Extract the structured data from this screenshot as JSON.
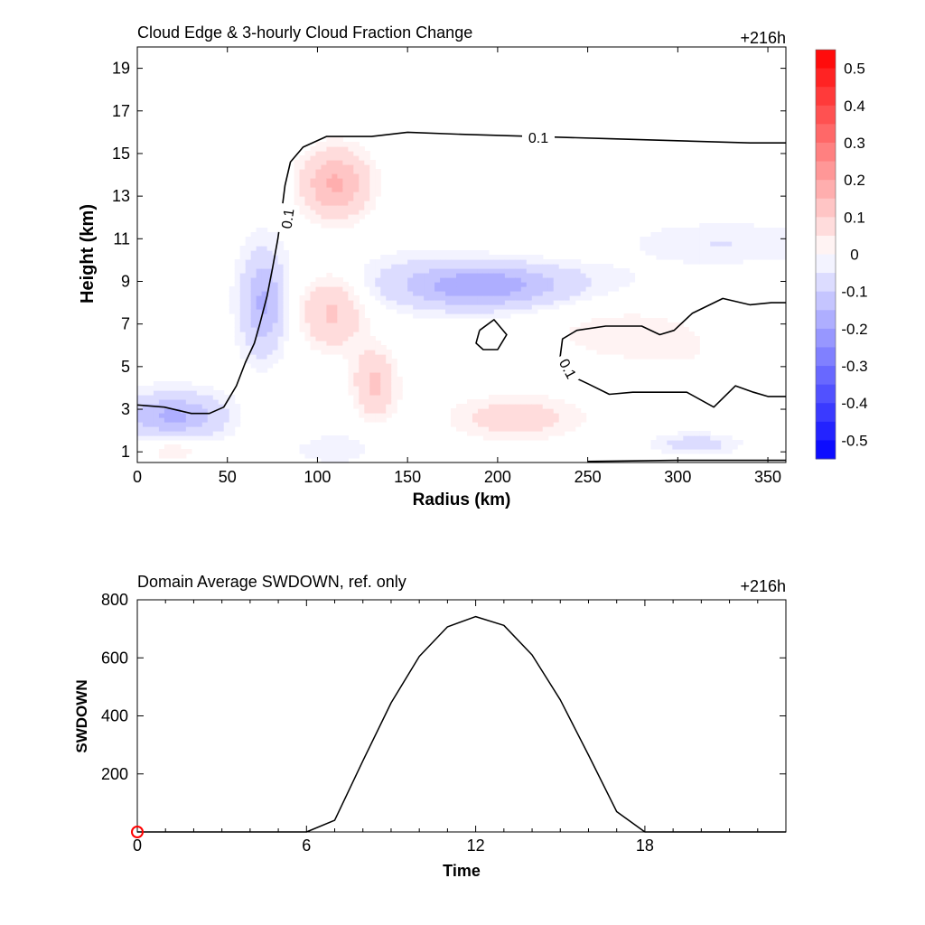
{
  "chart_data": [
    {
      "type": "heatmap",
      "title": "Cloud Edge & 3-hourly Cloud Fraction Change",
      "time_label": "+216h",
      "xlabel": "Radius (km)",
      "ylabel": "Height (km)",
      "xlim": [
        0,
        360
      ],
      "ylim": [
        0.5,
        20
      ],
      "x_ticks": [
        "0",
        "50",
        "100",
        "150",
        "200",
        "250",
        "300",
        "350"
      ],
      "y_ticks": [
        "1",
        "3",
        "5",
        "7",
        "9",
        "11",
        "13",
        "15",
        "17",
        "19"
      ],
      "colorbar": {
        "min": -0.55,
        "max": 0.55,
        "step": 0.05,
        "tick_labels": [
          "0.5",
          "0.4",
          "0.3",
          "0.2",
          "0.1",
          "0",
          "-0.1",
          "-0.2",
          "-0.3",
          "-0.4",
          "-0.5"
        ],
        "neg_color": "#0000ff",
        "pos_color": "#ff0000"
      },
      "contour_level_label": "0.1",
      "contour_level": 0.1,
      "anomalies": [
        {
          "x": 20,
          "y": 2.7,
          "sx": 20,
          "sy": 0.7,
          "v": -0.15
        },
        {
          "x": 70,
          "y": 8,
          "sx": 8,
          "sy": 1.6,
          "v": -0.15
        },
        {
          "x": 190,
          "y": 8.7,
          "sx": 32,
          "sy": 0.7,
          "v": -0.14
        },
        {
          "x": 200,
          "y": 9.3,
          "sx": 50,
          "sy": 0.8,
          "v": -0.06
        },
        {
          "x": 320,
          "y": 10.8,
          "sx": 40,
          "sy": 0.6,
          "v": -0.04
        },
        {
          "x": 310,
          "y": 1.4,
          "sx": 14,
          "sy": 0.3,
          "v": -0.07
        },
        {
          "x": 100,
          "y": 1.2,
          "sx": 20,
          "sy": 0.5,
          "v": -0.04
        },
        {
          "x": 110,
          "y": 13.6,
          "sx": 14,
          "sy": 1.2,
          "v": 0.17
        },
        {
          "x": 108,
          "y": 7.6,
          "sx": 13,
          "sy": 1.3,
          "v": 0.12
        },
        {
          "x": 132,
          "y": 4.2,
          "sx": 9,
          "sy": 1.2,
          "v": 0.12
        },
        {
          "x": 210,
          "y": 2.6,
          "sx": 28,
          "sy": 0.8,
          "v": 0.09
        },
        {
          "x": 270,
          "y": 6.6,
          "sx": 40,
          "sy": 1.1,
          "v": 0.05
        },
        {
          "x": 20,
          "y": 1.1,
          "sx": 12,
          "sy": 0.5,
          "v": 0.06
        },
        {
          "x": 80,
          "y": 2.3,
          "sx": 15,
          "sy": 1.5,
          "v": 0.04
        },
        {
          "x": 230,
          "y": 10.5,
          "sx": 40,
          "sy": 1.0,
          "v": 0.03
        },
        {
          "x": 330,
          "y": 4.5,
          "sx": 40,
          "sy": 1.2,
          "v": 0.03
        }
      ],
      "contours": [
        [
          [
            0,
            3.2
          ],
          [
            15,
            3.1
          ],
          [
            30,
            2.8
          ],
          [
            40,
            2.8
          ],
          [
            48,
            3.1
          ],
          [
            55,
            4.1
          ],
          [
            60,
            5.2
          ],
          [
            65,
            6.1
          ],
          [
            68,
            7.0
          ],
          [
            72,
            8.3
          ],
          [
            75,
            9.6
          ],
          [
            78,
            11.0
          ],
          [
            80,
            12.2
          ],
          [
            82,
            13.5
          ],
          [
            85,
            14.6
          ],
          [
            92,
            15.3
          ],
          [
            105,
            15.8
          ],
          [
            130,
            15.8
          ],
          [
            150,
            16.0
          ],
          [
            180,
            15.9
          ],
          [
            220,
            15.8
          ],
          [
            260,
            15.7
          ],
          [
            300,
            15.6
          ],
          [
            340,
            15.5
          ],
          [
            360,
            15.5
          ]
        ],
        [
          [
            234,
            5.0
          ],
          [
            236,
            6.3
          ],
          [
            244,
            6.7
          ],
          [
            260,
            6.9
          ],
          [
            280,
            6.9
          ],
          [
            290,
            6.5
          ],
          [
            298,
            6.7
          ],
          [
            308,
            7.5
          ],
          [
            325,
            8.2
          ],
          [
            340,
            7.9
          ],
          [
            352,
            8.0
          ],
          [
            360,
            8.0
          ]
        ],
        [
          [
            234,
            5.0
          ],
          [
            240,
            4.6
          ],
          [
            250,
            4.2
          ],
          [
            262,
            3.7
          ],
          [
            275,
            3.8
          ],
          [
            290,
            3.8
          ],
          [
            305,
            3.8
          ],
          [
            320,
            3.1
          ],
          [
            332,
            4.1
          ],
          [
            342,
            3.8
          ],
          [
            350,
            3.6
          ],
          [
            360,
            3.6
          ]
        ],
        [
          [
            190,
            6.7
          ],
          [
            198,
            7.2
          ],
          [
            205,
            6.5
          ],
          [
            200,
            5.8
          ],
          [
            192,
            5.8
          ],
          [
            188,
            6.1
          ],
          [
            190,
            6.7
          ]
        ],
        [
          [
            250,
            0.55
          ],
          [
            300,
            0.6
          ],
          [
            360,
            0.6
          ]
        ]
      ]
    },
    {
      "type": "line",
      "title": "Domain Average SWDOWN, ref. only",
      "time_label": "+216h",
      "xlabel": "Time",
      "ylabel": "SWDOWN",
      "xlim": [
        0,
        23
      ],
      "ylim": [
        0,
        800
      ],
      "x_ticks": [
        "0",
        "6",
        "12",
        "18"
      ],
      "y_ticks": [
        "200",
        "400",
        "600",
        "800"
      ],
      "x": [
        0,
        1,
        2,
        3,
        4,
        5,
        6,
        7,
        8,
        9,
        10,
        11,
        12,
        13,
        14,
        15,
        16,
        17,
        18,
        19,
        20,
        21,
        22,
        23
      ],
      "values": [
        0,
        0,
        0,
        0,
        0,
        0,
        0,
        40,
        245,
        445,
        605,
        707,
        742,
        712,
        610,
        455,
        265,
        70,
        0,
        0,
        0,
        0,
        0,
        0
      ],
      "marker": {
        "x": 0,
        "y": 0,
        "color": "#ff0000"
      }
    }
  ]
}
